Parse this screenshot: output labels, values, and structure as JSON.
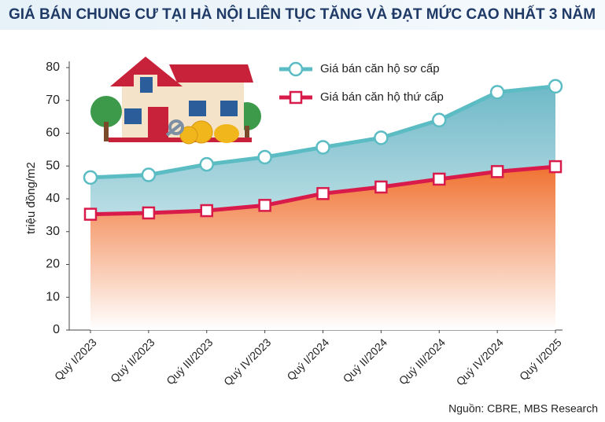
{
  "chart_data": {
    "type": "area",
    "title": "GIÁ BÁN CHUNG CƯ TẠI HÀ NỘI LIÊN TỤC TĂNG VÀ ĐẠT MỨC CAO NHẤT 3 NĂM",
    "y_label": "triệu đồng/m2",
    "source": "Nguồn: CBRE, MBS Research",
    "categories": [
      "Quý I/2023",
      "Quý II/2023",
      "Quý III/2023",
      "Quý IV/2023",
      "Quý I/2024",
      "Quý II/2024",
      "Quý III/2024",
      "Quý IV/2024",
      "Quý I/2025"
    ],
    "series": [
      {
        "name": "Giá bán căn hộ sơ cấp",
        "color": "#5bbcc4",
        "values": [
          46.5,
          47.3,
          50.5,
          52.7,
          55.7,
          58.6,
          64,
          72.5,
          74.3
        ]
      },
      {
        "name": "Giá bán căn hộ thứ cấp",
        "color": "#d81b4a",
        "values": [
          35.3,
          35.7,
          36.4,
          38,
          41.6,
          43.6,
          46,
          48.3,
          49.8
        ]
      }
    ],
    "ylim": [
      0,
      80
    ],
    "yticks": [
      0,
      10,
      20,
      30,
      40,
      50,
      60,
      70,
      80
    ],
    "grid": false
  }
}
